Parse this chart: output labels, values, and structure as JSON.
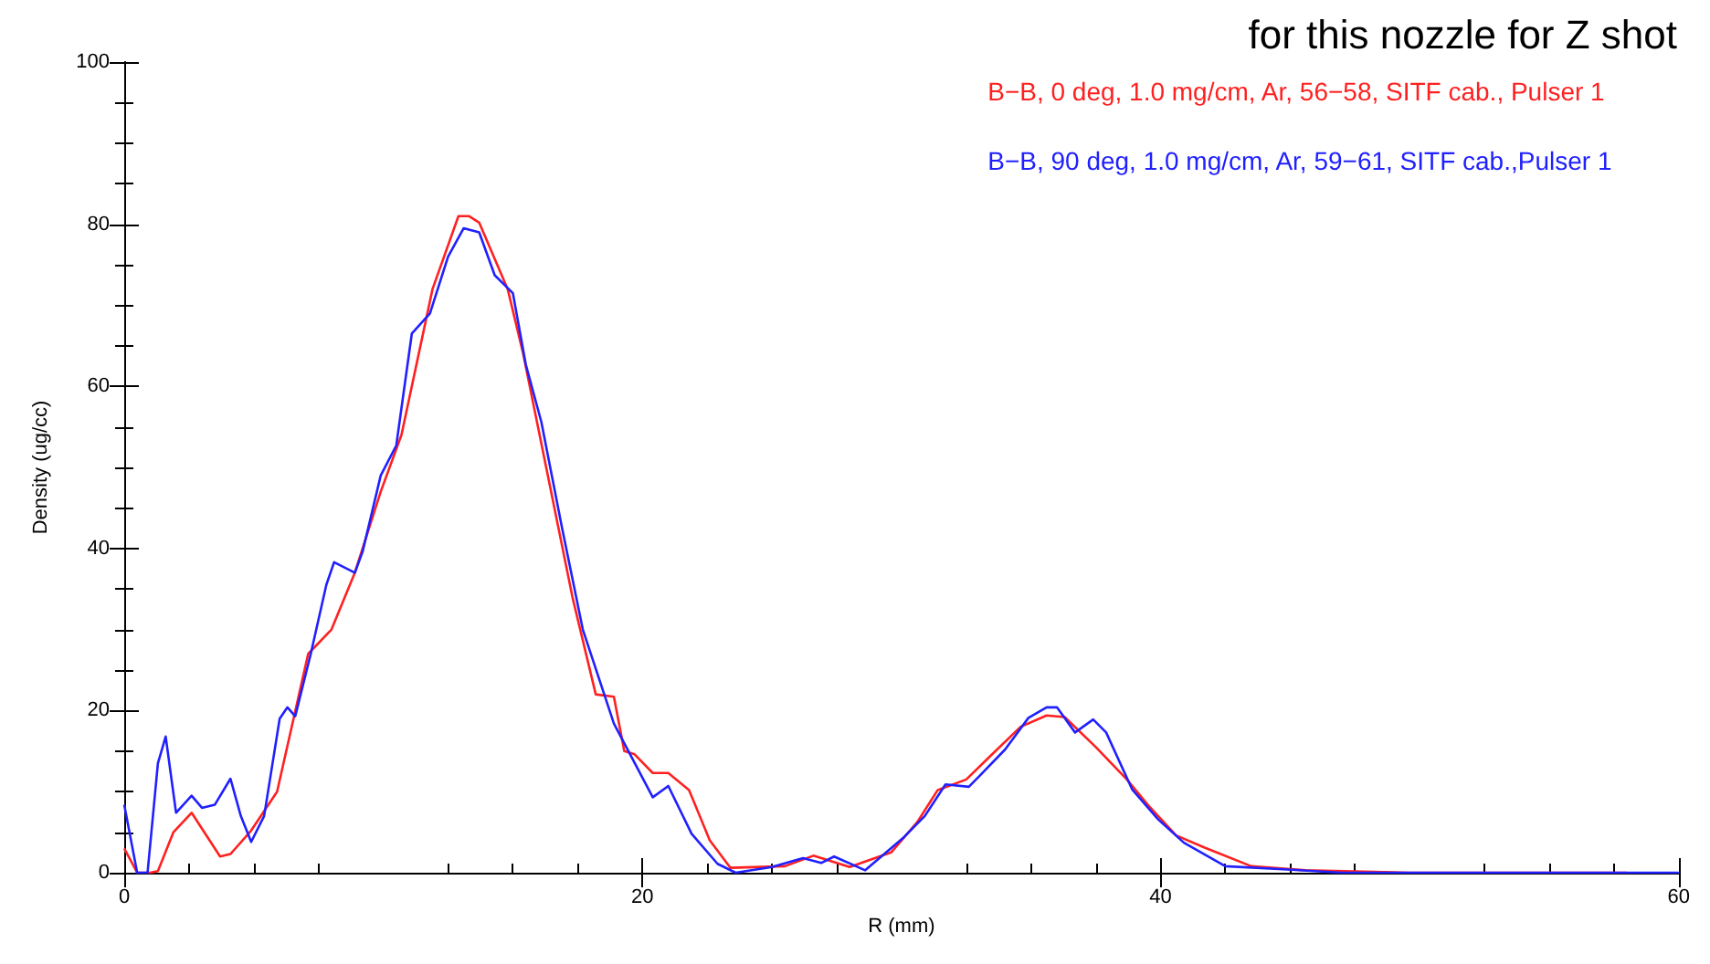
{
  "chart_data": {
    "type": "line",
    "xlabel": "R (mm)",
    "ylabel": "Density (ug/cc)",
    "annotations": [
      "for this nozzle for Z shot"
    ],
    "xlim": [
      0,
      60
    ],
    "ylim": [
      0,
      100
    ],
    "xticks": [
      0,
      20,
      40,
      60
    ],
    "yticks": [
      0,
      20,
      40,
      60,
      80,
      100
    ],
    "grid": false,
    "legend": "top right",
    "marker": "none",
    "line_style": "solid",
    "series": [
      {
        "name": "B−B, 0 deg, 1.0 mg/cm, Ar, 56−58, SITF cab., Pulser 1",
        "color": "#ff2020",
        "x": [
          0,
          0.5,
          1,
          1.3,
          1.9,
          2.6,
          3.7,
          4.1,
          4.9,
          5.9,
          7.1,
          8,
          8.9,
          9.9,
          10.7,
          11.9,
          12.9,
          13.3,
          13.7,
          14.8,
          15.4,
          17.3,
          18.2,
          18.9,
          19.3,
          19.7,
          20.4,
          21,
          21.8,
          22.6,
          23.4,
          25.5,
          26.6,
          28,
          29.6,
          30.6,
          31.4,
          32.5,
          33.4,
          34.6,
          35.6,
          36.3,
          37.5,
          38.7,
          39.5,
          40.6,
          41.7,
          43.5,
          45.6,
          49.6,
          54,
          58
        ],
        "values": [
          3,
          0,
          0,
          0.2,
          5,
          7.4,
          2,
          2.3,
          5.2,
          10,
          27,
          30,
          37,
          47,
          54,
          72,
          81,
          81,
          80.2,
          72,
          64,
          34,
          22,
          21.7,
          15,
          14.6,
          12.3,
          12.3,
          10.2,
          4,
          0.6,
          0.8,
          2.1,
          0.7,
          2.5,
          6.2,
          10.2,
          11.5,
          14.3,
          18,
          19.4,
          19.2,
          15.5,
          11.5,
          8.4,
          4.6,
          3.1,
          0.8,
          0.3,
          0,
          0,
          0
        ]
      },
      {
        "name": "B−B, 90 deg, 1.0 mg/cm, Ar, 59−61, SITF cab.,Pulser 1",
        "color": "#2020ff",
        "x": [
          0,
          0.5,
          0.9,
          1.3,
          1.6,
          2,
          2.6,
          3,
          3.5,
          4.1,
          4.5,
          4.9,
          5.4,
          6,
          6.3,
          6.6,
          7.2,
          7.8,
          8.1,
          8.9,
          9.2,
          9.9,
          10.5,
          11.1,
          11.8,
          12.5,
          13.1,
          13.7,
          14.3,
          15,
          15.5,
          16.1,
          16.9,
          17.7,
          18.9,
          20.4,
          21,
          21.9,
          22.9,
          23.6,
          25,
          26.2,
          26.9,
          27.4,
          28.6,
          30.1,
          30.9,
          31.7,
          32.6,
          33,
          34,
          34.9,
          35.6,
          36,
          36.7,
          37.4,
          37.9,
          38.9,
          39.9,
          40.9,
          42.5,
          44.9,
          47,
          60
        ],
        "values": [
          8.4,
          0,
          0,
          13.5,
          16.8,
          7.4,
          9.5,
          8,
          8.4,
          11.6,
          7,
          3.8,
          7,
          19,
          20.4,
          19.3,
          27,
          35.5,
          38.3,
          37,
          39.6,
          49,
          52.7,
          66.5,
          69,
          76,
          79.5,
          79,
          73.7,
          71.5,
          62.7,
          55.6,
          42.5,
          30,
          18.4,
          9.3,
          10.7,
          4.8,
          1.1,
          0,
          0.7,
          1.8,
          1.2,
          2,
          0.3,
          4.4,
          7,
          10.9,
          10.6,
          11.9,
          15.2,
          19.1,
          20.4,
          20.4,
          17.3,
          18.9,
          17.3,
          10.3,
          6.6,
          3.7,
          0.8,
          0.4,
          0,
          0
        ]
      }
    ]
  }
}
